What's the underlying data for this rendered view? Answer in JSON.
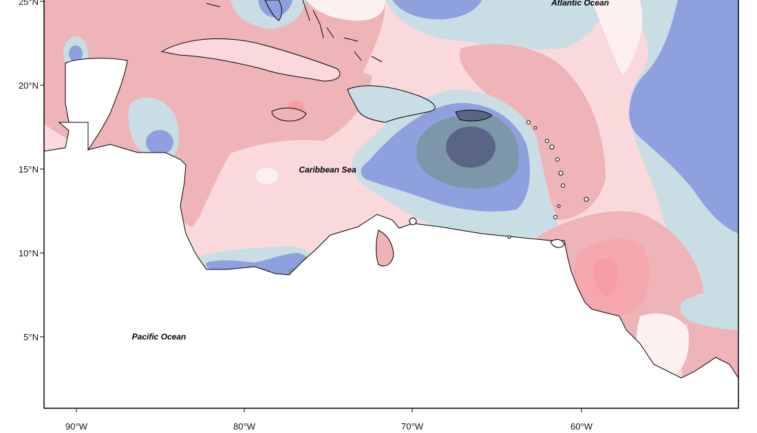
{
  "map": {
    "labels": {
      "atlantic": "Atlantic Ocean",
      "caribbean": "Caribbean Sea",
      "pacific": "Pacific Ocean"
    },
    "lat_ticks": [
      "25°N",
      "20°N",
      "15°N",
      "10°N",
      "5°N"
    ],
    "lon_ticks": [
      "90°W",
      "80°W",
      "70°W",
      "60°W"
    ],
    "colors": {
      "anom_neg_strong": "#5a6585",
      "anom_neg_mid": "#7d96a8",
      "anom_neg": "#8fa0de",
      "anom_neg_weak": "#c8dde4",
      "neutral_light": "#fdf0f0",
      "anom_pos_weak": "#fad9dd",
      "anom_pos": "#efb4b8",
      "anom_pos_strong": "#f69ca4",
      "land": "#ffffff",
      "frame": "#000000"
    }
  }
}
